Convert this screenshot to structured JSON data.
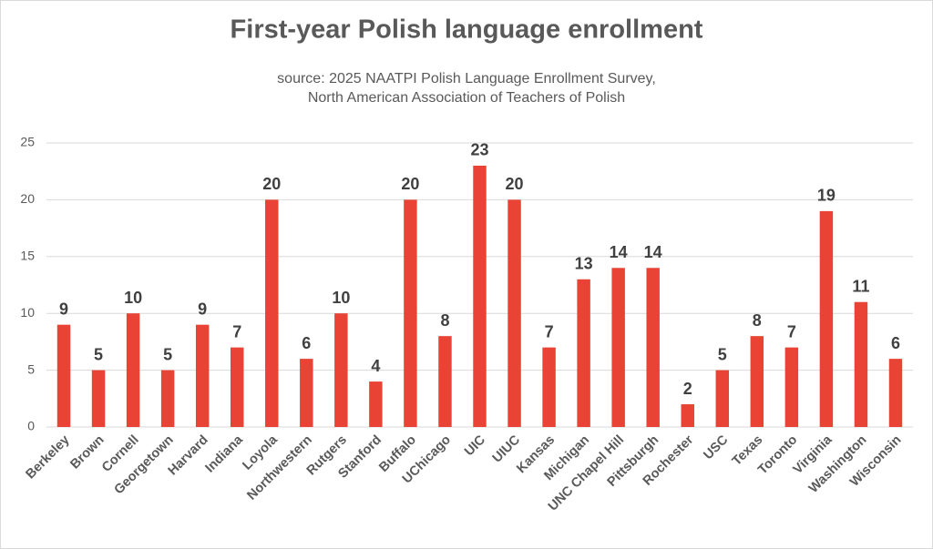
{
  "chart_data": {
    "type": "bar",
    "title": "First-year Polish language enrollment",
    "subtitle": [
      "source: 2025 NAATPI Polish Language Enrollment Survey,",
      "North American Association of Teachers of Polish"
    ],
    "categories": [
      "Berkeley",
      "Brown",
      "Cornell",
      "Georgetown",
      "Harvard",
      "Indiana",
      "Loyola",
      "Northwestern",
      "Rutgers",
      "Stanford",
      "Buffalo",
      "UChicago",
      "UIC",
      "UIUC",
      "Kansas",
      "Michigan",
      "UNC Chapel Hill",
      "Pittsburgh",
      "Rochester",
      "USC",
      "Texas",
      "Toronto",
      "Virginia",
      "Washington",
      "Wisconsin"
    ],
    "values": [
      9,
      5,
      10,
      5,
      9,
      7,
      20,
      6,
      10,
      4,
      20,
      8,
      23,
      20,
      7,
      13,
      14,
      14,
      2,
      5,
      8,
      7,
      19,
      11,
      6
    ],
    "color": "#e84335",
    "ylim": [
      0,
      25
    ],
    "yticks": [
      0,
      5,
      10,
      15,
      20,
      25
    ],
    "grid": true
  }
}
